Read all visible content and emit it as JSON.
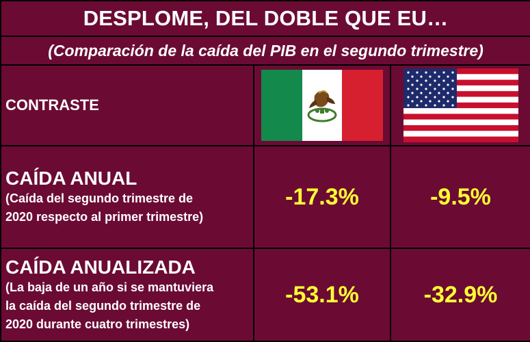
{
  "header": {
    "title": "DESPLOME, DEL DOBLE QUE EU…",
    "subtitle": "(Comparación de la caída del PIB en el segundo trimestre)"
  },
  "columns": {
    "label": "CONTRASTE",
    "flags": [
      "mexico-flag-icon",
      "usa-flag-icon"
    ]
  },
  "rows": [
    {
      "title": "CAÍDA ANUAL",
      "note_lines": [
        "(Caída del segundo trimestre de",
        "2020 respecto al  primer trimestre)"
      ],
      "mexico": "-17.3%",
      "usa": "-9.5%"
    },
    {
      "title": "CAÍDA ANUALIZADA",
      "note_lines": [
        "(La baja de un año si se mantuviera",
        "la caída del segundo trimestre de",
        "2020 durante cuatro trimestres)"
      ],
      "mexico": "-53.1%",
      "usa": "-32.9%"
    }
  ],
  "colors": {
    "background": "#6b0b34",
    "value": "#ffff33",
    "text": "#ffffff"
  }
}
